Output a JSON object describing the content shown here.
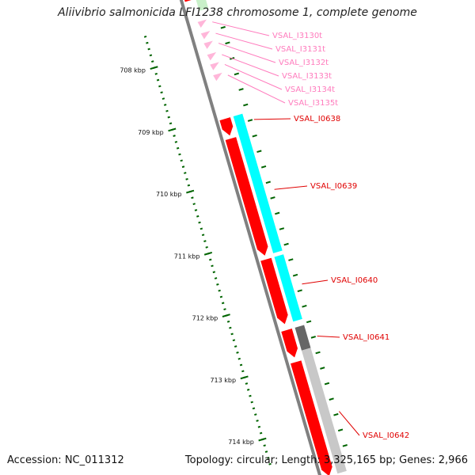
{
  "title": "Aliivibrio salmonicida LFI1238 chromosome 1, complete genome",
  "footer": {
    "accession": "Accession: NC_011312",
    "summary": "Topology: circular; Length: 3,325,165 bp; Genes: 2,966"
  },
  "colors": {
    "backbone": "#808080",
    "tick": "#006400",
    "cds": "#ff0000",
    "trna": "#ffb6d9",
    "trna_label": "#ff7bbd",
    "cds_label": "#e00000",
    "track_cyan": "#00ffff",
    "track_darkgray": "#666666",
    "track_lightgray": "#c8c8c8"
  },
  "scale": {
    "unit": "kbp",
    "ticks": [
      {
        "label": "708 kbp",
        "kbp": 708
      },
      {
        "label": "709 kbp",
        "kbp": 709
      },
      {
        "label": "710 kbp",
        "kbp": 710
      },
      {
        "label": "711 kbp",
        "kbp": 711
      },
      {
        "label": "712 kbp",
        "kbp": 712
      },
      {
        "label": "713 kbp",
        "kbp": 713
      },
      {
        "label": "714 kbp",
        "kbp": 714
      }
    ]
  },
  "features": {
    "trna": [
      {
        "label": "VSAL_I3130t"
      },
      {
        "label": "VSAL_I3131t"
      },
      {
        "label": "VSAL_I3132t"
      },
      {
        "label": "VSAL_I3133t"
      },
      {
        "label": "VSAL_I3134t"
      },
      {
        "label": "VSAL_I3135t"
      }
    ],
    "cds": [
      {
        "label": "VSAL_I0638"
      },
      {
        "label": "VSAL_I0639"
      },
      {
        "label": "VSAL_I0640"
      },
      {
        "label": "VSAL_I0641"
      },
      {
        "label": "VSAL_I0642"
      }
    ]
  }
}
